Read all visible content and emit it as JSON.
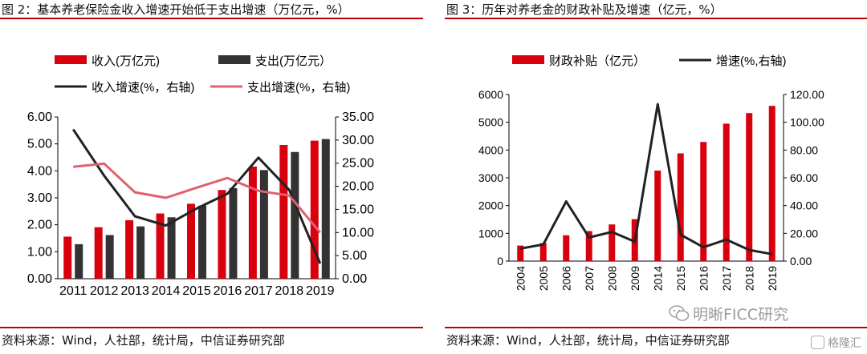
{
  "charts": [
    {
      "title": "图 2：基本养老保险金收入增速开始低于支出增速（万亿元，%）",
      "source": "资料来源：Wind，人社部，统计局，中信证券研究部",
      "chart_data": {
        "type": "bar",
        "categories": [
          "2011",
          "2012",
          "2013",
          "2014",
          "2015",
          "2016",
          "2017",
          "2018",
          "2019"
        ],
        "ylim": [
          0,
          6
        ],
        "y2lim": [
          0,
          35
        ],
        "yticks": [
          "0.00",
          "1.00",
          "2.00",
          "3.00",
          "4.00",
          "5.00",
          "6.00"
        ],
        "y2ticks": [
          "0.00",
          "5.00",
          "10.00",
          "15.00",
          "20.00",
          "25.00",
          "30.00",
          "35.00"
        ],
        "series": [
          {
            "name": "收入(万亿元)",
            "type": "bar",
            "axis": "left",
            "color": "#d9000d",
            "values": [
              1.56,
              1.91,
              2.17,
              2.42,
              2.78,
              3.29,
              4.16,
              4.96,
              5.12
            ]
          },
          {
            "name": "支出(万亿元）",
            "type": "bar",
            "axis": "left",
            "color": "#333333",
            "values": [
              1.28,
              1.62,
              1.94,
              2.28,
              2.71,
              3.36,
              4.03,
              4.7,
              5.18
            ]
          },
          {
            "name": "收入增速(%，右轴)",
            "type": "line",
            "axis": "right",
            "color": "#222222",
            "values": [
              32.3,
              22.3,
              13.5,
              11.5,
              15.2,
              18.4,
              26.2,
              19.2,
              3.3
            ]
          },
          {
            "name": "支出增速(%，右轴)",
            "type": "line",
            "axis": "right",
            "color": "#e06070",
            "values": [
              24.2,
              24.9,
              18.7,
              17.5,
              19.7,
              21.8,
              19.0,
              18.0,
              10.0
            ]
          }
        ],
        "legend": "top"
      }
    },
    {
      "title": "图 3：历年对养老金的财政补贴及增速（亿元，%）",
      "source": "资料来源：Wind，人社部，统计局，中信证券研究部",
      "chart_data": {
        "type": "bar",
        "categories": [
          "2004",
          "2005",
          "2006",
          "2007",
          "2008",
          "2009",
          "2014",
          "2015",
          "2016",
          "2017",
          "2018",
          "2019"
        ],
        "ylim": [
          0,
          6000
        ],
        "y2lim": [
          0,
          120
        ],
        "yticks": [
          "0",
          "1000",
          "2000",
          "3000",
          "4000",
          "5000",
          "6000"
        ],
        "y2ticks": [
          "0.00",
          "20.00",
          "40.00",
          "60.00",
          "80.00",
          "100.00",
          "120.00"
        ],
        "series": [
          {
            "name": "财政补贴（亿元）",
            "type": "bar",
            "axis": "left",
            "color": "#d9000d",
            "values": [
              560,
              650,
              930,
              1080,
              1320,
              1510,
              3260,
              3880,
              4290,
              4950,
              5330,
              5590
            ]
          },
          {
            "name": "增速(%,右轴)",
            "type": "line",
            "axis": "right",
            "color": "#222222",
            "values": [
              9,
              12,
              43,
              17,
              21,
              14,
              113,
              19,
              10,
              15.5,
              8,
              5
            ]
          }
        ],
        "legend": "top"
      }
    }
  ],
  "watermark": {
    "text": "明晰FICC研究"
  },
  "brand": {
    "text": "格隆汇"
  }
}
